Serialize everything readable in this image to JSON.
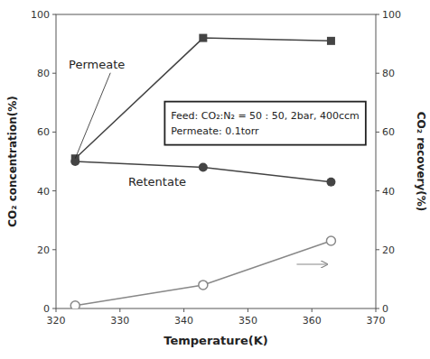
{
  "chart_data": {
    "type": "line",
    "x": [
      323,
      343,
      363
    ],
    "xlim": [
      320,
      370
    ],
    "xticks": [
      320,
      330,
      340,
      350,
      360,
      370
    ],
    "ylim": [
      0,
      100
    ],
    "yticks": [
      0,
      20,
      40,
      60,
      80,
      100
    ],
    "y2lim": [
      0,
      100
    ],
    "y2ticks": [
      0,
      20,
      40,
      60,
      80,
      100
    ],
    "xlabel": "Temperature(K)",
    "ylabel": "CO₂ concentration(%)",
    "y2label": "CO₂ recovery(%)",
    "grid": false,
    "series": [
      {
        "name": "Permeate",
        "color": "#444444",
        "marker": "square",
        "values": [
          51,
          92,
          91
        ]
      },
      {
        "name": "Retentate",
        "color": "#444444",
        "marker": "circle",
        "values": [
          50,
          48,
          43
        ]
      },
      {
        "color": "#888888",
        "marker": "circle-open",
        "axis": "y2",
        "values": [
          1,
          8,
          23
        ]
      }
    ],
    "annotations": [
      "Feed: CO₂:N₂ = 50 : 50, 2bar, 400ccm",
      "Permeate: 0.1torr"
    ]
  }
}
